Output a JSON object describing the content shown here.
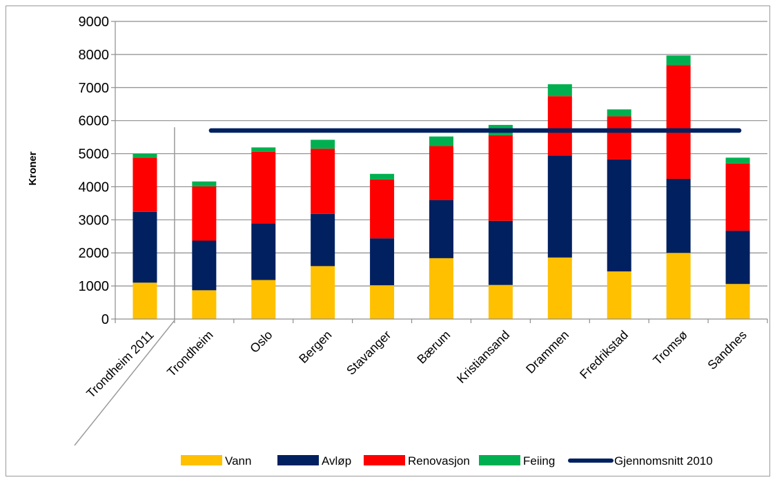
{
  "chart_data": {
    "type": "bar",
    "stacked": true,
    "ylabel": "Kroner",
    "xlabel": "",
    "ylim": [
      0,
      9000
    ],
    "yticks": [
      0,
      1000,
      2000,
      3000,
      4000,
      5000,
      6000,
      7000,
      8000,
      9000
    ],
    "grid": true,
    "legend_position": "bottom",
    "categories": [
      "Trondheim 2011",
      "Trondheim",
      "Oslo",
      "Bergen",
      "Stavanger",
      "Bærum",
      "Kristiansand",
      "Drammen",
      "Fredrikstad",
      "Tromsø",
      "Sandnes"
    ],
    "series": [
      {
        "name": "Vann",
        "color": "#FFC000",
        "values": [
          1100,
          870,
          1180,
          1600,
          1020,
          1840,
          1030,
          1860,
          1440,
          2000,
          1060
        ]
      },
      {
        "name": "Avløp",
        "color": "#002060",
        "values": [
          2140,
          1500,
          1710,
          1580,
          1420,
          1760,
          1940,
          3080,
          3390,
          2240,
          1610
        ]
      },
      {
        "name": "Renovasjon",
        "color": "#FF0000",
        "values": [
          1640,
          1640,
          2170,
          1970,
          1780,
          1630,
          2590,
          1800,
          1300,
          3440,
          2030
        ]
      },
      {
        "name": "Feiing",
        "color": "#00B050",
        "values": [
          120,
          150,
          130,
          270,
          170,
          290,
          310,
          360,
          210,
          290,
          180
        ]
      }
    ],
    "reference_line": {
      "name": "Gjennomsnitt 2010",
      "color": "#002060",
      "value": 5700,
      "from_category": "Trondheim",
      "to_category": "Sandnes"
    }
  }
}
